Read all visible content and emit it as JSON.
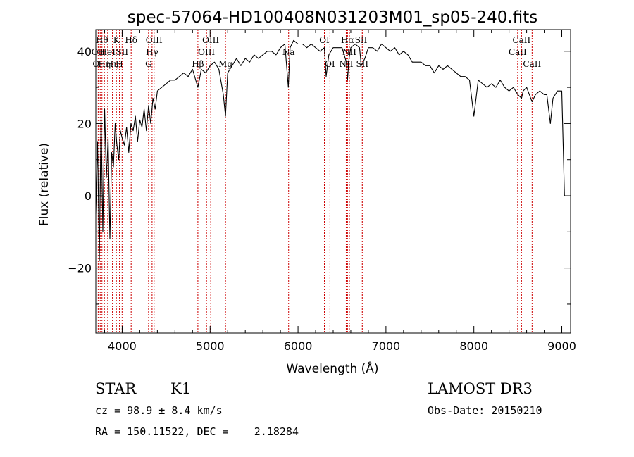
{
  "chart_data": {
    "type": "line",
    "title": "spec-57064-HD100408N031203M01_sp05-240.fits",
    "xlabel": "Wavelength (Å)",
    "ylabel": "Flux (relative)",
    "xlim": [
      3700,
      9100
    ],
    "ylim": [
      -38,
      46
    ],
    "x_ticks": [
      4000,
      5000,
      6000,
      7000,
      8000,
      9000
    ],
    "x_tick_labels": [
      "4000",
      "5000",
      "6000",
      "7000",
      "8000",
      "9000"
    ],
    "y_ticks": [
      -20,
      0,
      20,
      40
    ],
    "y_tick_labels": [
      "−20",
      "0",
      "20",
      "40"
    ],
    "series": [
      {
        "name": "flux",
        "x": [
          3700,
          3720,
          3740,
          3760,
          3780,
          3800,
          3820,
          3840,
          3860,
          3880,
          3900,
          3920,
          3940,
          3960,
          3980,
          4000,
          4025,
          4050,
          4075,
          4100,
          4125,
          4150,
          4175,
          4200,
          4225,
          4250,
          4275,
          4300,
          4325,
          4350,
          4375,
          4400,
          4450,
          4500,
          4550,
          4600,
          4650,
          4700,
          4750,
          4800,
          4861,
          4900,
          4950,
          5000,
          5050,
          5100,
          5150,
          5175,
          5200,
          5250,
          5300,
          5350,
          5400,
          5450,
          5500,
          5550,
          5600,
          5650,
          5700,
          5750,
          5800,
          5850,
          5890,
          5910,
          5950,
          6000,
          6050,
          6100,
          6150,
          6200,
          6250,
          6300,
          6320,
          6350,
          6400,
          6450,
          6500,
          6550,
          6563,
          6580,
          6600,
          6650,
          6700,
          6720,
          6760,
          6800,
          6850,
          6900,
          6950,
          7000,
          7050,
          7100,
          7150,
          7200,
          7250,
          7300,
          7350,
          7400,
          7450,
          7500,
          7550,
          7600,
          7650,
          7700,
          7750,
          7800,
          7850,
          7900,
          7950,
          8000,
          8050,
          8100,
          8150,
          8200,
          8250,
          8300,
          8350,
          8400,
          8450,
          8500,
          8542,
          8560,
          8600,
          8662,
          8700,
          8750,
          8800,
          8830,
          8870,
          8900,
          8950,
          9000,
          9030
        ],
        "values": [
          -5,
          15,
          -18,
          22,
          -10,
          24,
          5,
          16,
          -12,
          12,
          8,
          20,
          14,
          10,
          18,
          16,
          14,
          19,
          12,
          20,
          18,
          22,
          15,
          21,
          19,
          24,
          18,
          25,
          20,
          27,
          24,
          29,
          30,
          31,
          32,
          32,
          33,
          34,
          33,
          35,
          30,
          35,
          34,
          36,
          37,
          35,
          28,
          22,
          34,
          36,
          38,
          36,
          38,
          37,
          39,
          38,
          39,
          40,
          40,
          39,
          41,
          42,
          30,
          41,
          43,
          42,
          42,
          41,
          42,
          41,
          40,
          41,
          33,
          39,
          41,
          41,
          41,
          37,
          32,
          38,
          41,
          42,
          41,
          36,
          38,
          41,
          41,
          40,
          42,
          41,
          40,
          41,
          39,
          40,
          39,
          37,
          37,
          37,
          36,
          36,
          34,
          36,
          35,
          36,
          35,
          34,
          33,
          33,
          32,
          22,
          32,
          31,
          30,
          31,
          30,
          32,
          30,
          29,
          30,
          28,
          27,
          29,
          30,
          26,
          28,
          29,
          28,
          28,
          20,
          27,
          29,
          29,
          0
        ]
      }
    ],
    "line_markers": [
      {
        "x": 3727,
        "label": "OII",
        "row": 1
      },
      {
        "x": 3750,
        "label": "O ",
        "row": 2
      },
      {
        "x": 3770,
        "label": "Hθ",
        "row": 0
      },
      {
        "x": 3798,
        "label": "Hη",
        "row": 2
      },
      {
        "x": 3835,
        "label": "HeI",
        "row": 1
      },
      {
        "x": 3889,
        "label": "Hη",
        "row": 2
      },
      {
        "x": 3934,
        "label": "K",
        "row": 0
      },
      {
        "x": 3969,
        "label": "H",
        "row": 2
      },
      {
        "x": 3999,
        "label": "SII",
        "row": 1
      },
      {
        "x": 4102,
        "label": "Hδ",
        "row": 0
      },
      {
        "x": 4300,
        "label": "G",
        "row": 2
      },
      {
        "x": 4340,
        "label": "Hγ",
        "row": 1
      },
      {
        "x": 4363,
        "label": "OIII",
        "row": 0
      },
      {
        "x": 4861,
        "label": "Hβ",
        "row": 2
      },
      {
        "x": 4959,
        "label": "OIII",
        "row": 1
      },
      {
        "x": 5007,
        "label": "OIII",
        "row": 0
      },
      {
        "x": 5175,
        "label": "Mg",
        "row": 2
      },
      {
        "x": 5893,
        "label": "Na",
        "row": 1
      },
      {
        "x": 6300,
        "label": "OI",
        "row": 0
      },
      {
        "x": 6363,
        "label": "OI",
        "row": 2
      },
      {
        "x": 6548,
        "label": "NII",
        "row": 2
      },
      {
        "x": 6563,
        "label": "Hα",
        "row": 0
      },
      {
        "x": 6584,
        "label": "NII",
        "row": 1
      },
      {
        "x": 6717,
        "label": "SII",
        "row": 0
      },
      {
        "x": 6731,
        "label": "SII",
        "row": 2
      },
      {
        "x": 8498,
        "label": "CaII",
        "row": 1
      },
      {
        "x": 8542,
        "label": "CaII",
        "row": 0
      },
      {
        "x": 8662,
        "label": "CaII",
        "row": 2
      }
    ]
  },
  "info": {
    "object_type": "STAR",
    "subclass": "K1",
    "survey": "LAMOST DR3",
    "redshift": "cz = 98.9 ± 8.4 km/s",
    "obs_date": "Obs-Date: 20150210",
    "coords": "RA = 150.11522, DEC =    2.18284"
  }
}
